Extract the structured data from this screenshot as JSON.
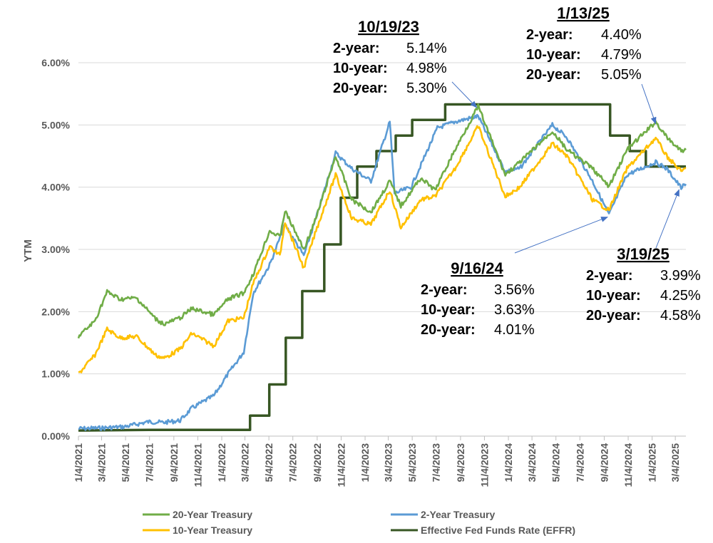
{
  "chart_data": {
    "type": "line",
    "title": "",
    "xlabel": "",
    "ylabel": "YTM",
    "ylim": [
      0,
      6
    ],
    "y_ticks": [
      "0.00%",
      "1.00%",
      "2.00%",
      "3.00%",
      "4.00%",
      "5.00%",
      "6.00%"
    ],
    "x_ticks": [
      "1/4/2021",
      "3/4/2021",
      "5/4/2021",
      "7/4/2021",
      "9/4/2021",
      "11/4/2021",
      "1/4/2022",
      "3/4/2022",
      "5/4/2022",
      "7/4/2022",
      "9/4/2022",
      "11/4/2022",
      "1/4/2023",
      "3/4/2023",
      "5/4/2023",
      "7/4/2023",
      "9/4/2023",
      "11/4/2023",
      "1/4/2024",
      "3/4/2024",
      "5/4/2024",
      "7/4/2024",
      "9/4/2024",
      "11/4/2024",
      "1/4/2025",
      "3/4/2025"
    ],
    "grid": "horizontal",
    "legend_position": "bottom",
    "series": [
      {
        "name": "20-Year Treasury",
        "color": "#70AD47",
        "points": [
          [
            "2021-01-04",
            1.6
          ],
          [
            "2021-02-15",
            1.85
          ],
          [
            "2021-03-18",
            2.32
          ],
          [
            "2021-04-20",
            2.2
          ],
          [
            "2021-06-01",
            2.22
          ],
          [
            "2021-07-20",
            1.88
          ],
          [
            "2021-08-10",
            1.8
          ],
          [
            "2021-09-20",
            1.9
          ],
          [
            "2021-10-20",
            2.05
          ],
          [
            "2021-12-15",
            1.95
          ],
          [
            "2022-01-20",
            2.2
          ],
          [
            "2022-03-01",
            2.3
          ],
          [
            "2022-03-25",
            2.6
          ],
          [
            "2022-05-06",
            3.3
          ],
          [
            "2022-06-01",
            3.2
          ],
          [
            "2022-06-14",
            3.62
          ],
          [
            "2022-08-01",
            3.0
          ],
          [
            "2022-09-01",
            3.5
          ],
          [
            "2022-10-21",
            4.5
          ],
          [
            "2022-12-01",
            3.8
          ],
          [
            "2023-01-19",
            3.6
          ],
          [
            "2023-03-08",
            4.1
          ],
          [
            "2023-04-05",
            3.7
          ],
          [
            "2023-05-26",
            4.15
          ],
          [
            "2023-07-01",
            3.95
          ],
          [
            "2023-08-21",
            4.6
          ],
          [
            "2023-10-19",
            5.3
          ],
          [
            "2023-12-27",
            4.2
          ],
          [
            "2024-02-02",
            4.4
          ],
          [
            "2024-04-25",
            4.9
          ],
          [
            "2024-06-01",
            4.6
          ],
          [
            "2024-08-05",
            4.3
          ],
          [
            "2024-09-16",
            4.01
          ],
          [
            "2024-11-01",
            4.6
          ],
          [
            "2025-01-13",
            5.05
          ],
          [
            "2025-02-10",
            4.8
          ],
          [
            "2025-03-19",
            4.58
          ],
          [
            "2025-03-31",
            4.6
          ]
        ]
      },
      {
        "name": "2-Year Treasury",
        "color": "#5B9BD5",
        "points": [
          [
            "2021-01-04",
            0.12
          ],
          [
            "2021-03-01",
            0.13
          ],
          [
            "2021-05-01",
            0.15
          ],
          [
            "2021-07-01",
            0.23
          ],
          [
            "2021-08-10",
            0.22
          ],
          [
            "2021-09-20",
            0.25
          ],
          [
            "2021-10-20",
            0.45
          ],
          [
            "2021-12-15",
            0.65
          ],
          [
            "2022-01-20",
            1.0
          ],
          [
            "2022-03-01",
            1.35
          ],
          [
            "2022-03-25",
            2.3
          ],
          [
            "2022-05-06",
            2.75
          ],
          [
            "2022-06-14",
            3.4
          ],
          [
            "2022-08-01",
            2.9
          ],
          [
            "2022-09-01",
            3.5
          ],
          [
            "2022-10-21",
            4.55
          ],
          [
            "2022-12-01",
            4.3
          ],
          [
            "2023-01-19",
            4.1
          ],
          [
            "2023-03-08",
            5.05
          ],
          [
            "2023-03-20",
            3.9
          ],
          [
            "2023-05-01",
            4.0
          ],
          [
            "2023-07-07",
            4.95
          ],
          [
            "2023-08-21",
            5.05
          ],
          [
            "2023-10-19",
            5.14
          ],
          [
            "2023-12-27",
            4.25
          ],
          [
            "2024-02-02",
            4.3
          ],
          [
            "2024-04-25",
            5.0
          ],
          [
            "2024-06-01",
            4.8
          ],
          [
            "2024-08-05",
            4.1
          ],
          [
            "2024-09-16",
            3.56
          ],
          [
            "2024-11-01",
            4.2
          ],
          [
            "2025-01-13",
            4.4
          ],
          [
            "2025-02-10",
            4.3
          ],
          [
            "2025-03-19",
            3.99
          ],
          [
            "2025-03-31",
            4.05
          ]
        ]
      },
      {
        "name": "10-Year Treasury",
        "color": "#FFC000",
        "points": [
          [
            "2021-01-04",
            1.0
          ],
          [
            "2021-02-15",
            1.3
          ],
          [
            "2021-03-18",
            1.72
          ],
          [
            "2021-04-20",
            1.58
          ],
          [
            "2021-06-01",
            1.6
          ],
          [
            "2021-07-20",
            1.3
          ],
          [
            "2021-08-10",
            1.25
          ],
          [
            "2021-09-20",
            1.4
          ],
          [
            "2021-10-20",
            1.65
          ],
          [
            "2021-12-15",
            1.45
          ],
          [
            "2022-01-20",
            1.85
          ],
          [
            "2022-03-01",
            1.9
          ],
          [
            "2022-03-25",
            2.45
          ],
          [
            "2022-05-06",
            3.05
          ],
          [
            "2022-06-01",
            2.9
          ],
          [
            "2022-06-14",
            3.45
          ],
          [
            "2022-08-01",
            2.7
          ],
          [
            "2022-09-01",
            3.3
          ],
          [
            "2022-10-21",
            4.2
          ],
          [
            "2022-12-01",
            3.5
          ],
          [
            "2023-01-19",
            3.4
          ],
          [
            "2023-03-08",
            3.95
          ],
          [
            "2023-04-05",
            3.35
          ],
          [
            "2023-05-26",
            3.8
          ],
          [
            "2023-07-01",
            3.85
          ],
          [
            "2023-08-21",
            4.3
          ],
          [
            "2023-10-19",
            4.98
          ],
          [
            "2023-12-27",
            3.85
          ],
          [
            "2024-02-02",
            4.0
          ],
          [
            "2024-04-25",
            4.7
          ],
          [
            "2024-06-01",
            4.5
          ],
          [
            "2024-08-05",
            3.8
          ],
          [
            "2024-09-16",
            3.63
          ],
          [
            "2024-11-01",
            4.3
          ],
          [
            "2025-01-13",
            4.79
          ],
          [
            "2025-02-10",
            4.5
          ],
          [
            "2025-03-19",
            4.25
          ],
          [
            "2025-03-31",
            4.3
          ]
        ]
      },
      {
        "name": "Effective Fed Funds Rate (EFFR)",
        "color": "#375623",
        "points": [
          [
            "2021-01-04",
            0.09
          ],
          [
            "2021-07-01",
            0.1
          ],
          [
            "2022-03-17",
            0.1
          ],
          [
            "2022-03-17",
            0.33
          ],
          [
            "2022-05-05",
            0.33
          ],
          [
            "2022-05-05",
            0.83
          ],
          [
            "2022-06-16",
            0.83
          ],
          [
            "2022-06-16",
            1.58
          ],
          [
            "2022-07-28",
            1.58
          ],
          [
            "2022-07-28",
            2.33
          ],
          [
            "2022-09-22",
            2.33
          ],
          [
            "2022-09-22",
            3.08
          ],
          [
            "2022-11-03",
            3.08
          ],
          [
            "2022-11-03",
            3.83
          ],
          [
            "2022-12-15",
            3.83
          ],
          [
            "2022-12-15",
            4.33
          ],
          [
            "2023-02-02",
            4.33
          ],
          [
            "2023-02-02",
            4.58
          ],
          [
            "2023-03-23",
            4.58
          ],
          [
            "2023-03-23",
            4.83
          ],
          [
            "2023-05-04",
            4.83
          ],
          [
            "2023-05-04",
            5.08
          ],
          [
            "2023-07-27",
            5.08
          ],
          [
            "2023-07-27",
            5.33
          ],
          [
            "2024-09-19",
            5.33
          ],
          [
            "2024-09-19",
            4.83
          ],
          [
            "2024-11-08",
            4.83
          ],
          [
            "2024-11-08",
            4.58
          ],
          [
            "2024-12-19",
            4.58
          ],
          [
            "2024-12-19",
            4.33
          ],
          [
            "2025-03-31",
            4.33
          ]
        ]
      }
    ]
  },
  "annotations": [
    {
      "date": "10/19/23",
      "rows": [
        {
          "label": "2-year:",
          "value": "5.14%"
        },
        {
          "label": "10-year:",
          "value": "4.98%"
        },
        {
          "label": "20-year:",
          "value": "5.30%"
        }
      ]
    },
    {
      "date": "1/13/25",
      "rows": [
        {
          "label": "2-year:",
          "value": "4.40%"
        },
        {
          "label": "10-year:",
          "value": "4.79%"
        },
        {
          "label": "20-year:",
          "value": "5.05%"
        }
      ]
    },
    {
      "date": "9/16/24",
      "rows": [
        {
          "label": "2-year:",
          "value": "3.56%"
        },
        {
          "label": "10-year:",
          "value": "3.63%"
        },
        {
          "label": "20-year:",
          "value": "4.01%"
        }
      ]
    },
    {
      "date": "3/19/25",
      "rows": [
        {
          "label": "2-year:",
          "value": "3.99%"
        },
        {
          "label": "10-year:",
          "value": "4.25%"
        },
        {
          "label": "20-year:",
          "value": "4.58%"
        }
      ]
    }
  ],
  "legend": [
    {
      "label": "20-Year Treasury",
      "color": "#70AD47"
    },
    {
      "label": "2-Year Treasury",
      "color": "#5B9BD5"
    },
    {
      "label": "10-Year Treasury",
      "color": "#FFC000"
    },
    {
      "label": "Effective Fed Funds Rate (EFFR)",
      "color": "#375623"
    }
  ]
}
